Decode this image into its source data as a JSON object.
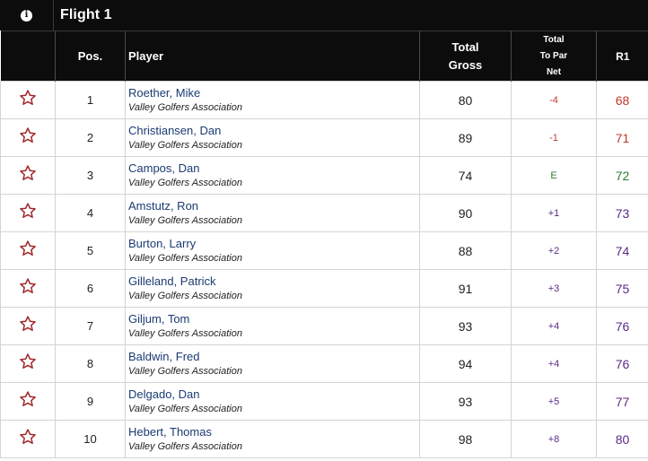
{
  "title_bar": {
    "info_icon": "info-icon",
    "flight_title": "Flight 1"
  },
  "columns": {
    "pos": "Pos.",
    "player": "Player",
    "gross_line1": "Total",
    "gross_line2": "Gross",
    "net_line1": "Total",
    "net_line2": "To Par",
    "net_line3": "Net",
    "r1": "R1"
  },
  "colors": {
    "header_bg": "#0c0c0c",
    "star": "#a0282a",
    "player_link": "#1a3b72",
    "under_par": "#c0392b",
    "even_par": "#2e7d32",
    "over_par": "#5b2a86"
  },
  "rows": [
    {
      "pos": "1",
      "name": "Roether, Mike",
      "club": "Valley Golfers Association",
      "gross": "80",
      "net": "-4",
      "r1": "68",
      "status": "under"
    },
    {
      "pos": "2",
      "name": "Christiansen, Dan",
      "club": "Valley Golfers Association",
      "gross": "89",
      "net": "-1",
      "r1": "71",
      "status": "under"
    },
    {
      "pos": "3",
      "name": "Campos, Dan",
      "club": "Valley Golfers Association",
      "gross": "74",
      "net": "E",
      "r1": "72",
      "status": "even"
    },
    {
      "pos": "4",
      "name": "Amstutz, Ron",
      "club": "Valley Golfers Association",
      "gross": "90",
      "net": "+1",
      "r1": "73",
      "status": "over"
    },
    {
      "pos": "5",
      "name": "Burton, Larry",
      "club": "Valley Golfers Association",
      "gross": "88",
      "net": "+2",
      "r1": "74",
      "status": "over"
    },
    {
      "pos": "6",
      "name": "Gilleland, Patrick",
      "club": "Valley Golfers Association",
      "gross": "91",
      "net": "+3",
      "r1": "75",
      "status": "over"
    },
    {
      "pos": "7",
      "name": "Giljum, Tom",
      "club": "Valley Golfers Association",
      "gross": "93",
      "net": "+4",
      "r1": "76",
      "status": "over"
    },
    {
      "pos": "8",
      "name": "Baldwin, Fred",
      "club": "Valley Golfers Association",
      "gross": "94",
      "net": "+4",
      "r1": "76",
      "status": "over"
    },
    {
      "pos": "9",
      "name": "Delgado, Dan",
      "club": "Valley Golfers Association",
      "gross": "93",
      "net": "+5",
      "r1": "77",
      "status": "over"
    },
    {
      "pos": "10",
      "name": "Hebert, Thomas",
      "club": "Valley Golfers Association",
      "gross": "98",
      "net": "+8",
      "r1": "80",
      "status": "over"
    }
  ]
}
